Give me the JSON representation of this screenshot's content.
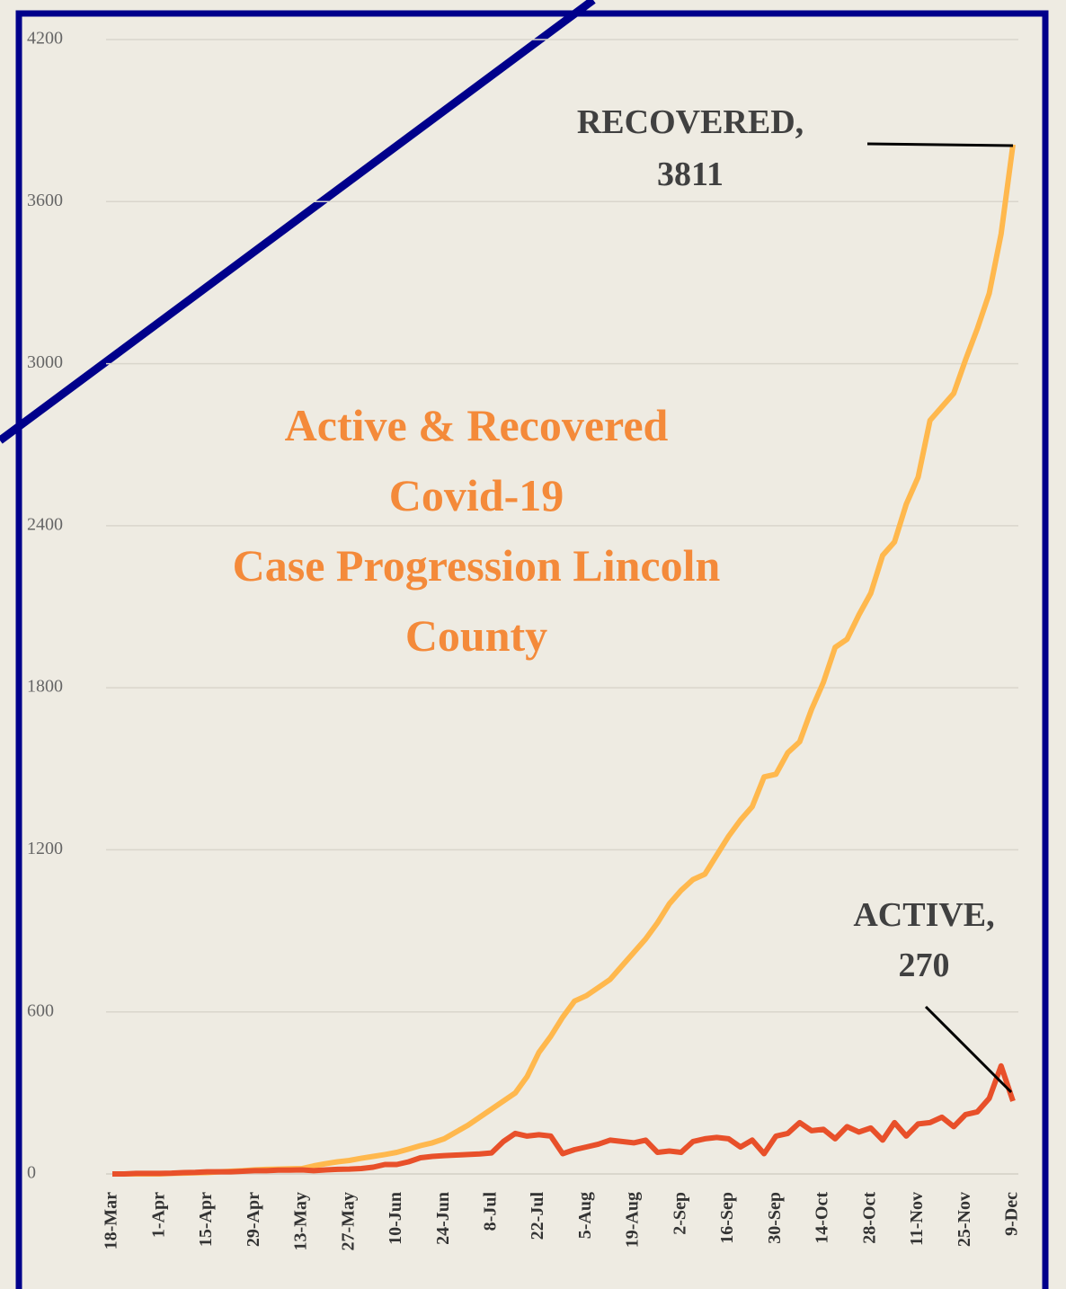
{
  "chart_data": {
    "type": "line",
    "title": [
      "Active & Recovered",
      "Covid-19",
      "Case Progression Lincoln",
      "County"
    ],
    "categories": [
      "18-Mar",
      null,
      null,
      null,
      "1-Apr",
      null,
      null,
      null,
      "15-Apr",
      null,
      null,
      null,
      "29-Apr",
      null,
      null,
      null,
      "13-May",
      null,
      null,
      null,
      "27-May",
      null,
      null,
      null,
      "10-Jun",
      null,
      null,
      null,
      "24-Jun",
      null,
      null,
      null,
      "8-Jul",
      null,
      null,
      null,
      "22-Jul",
      null,
      null,
      null,
      "5-Aug",
      null,
      null,
      null,
      "19-Aug",
      null,
      null,
      null,
      "2-Sep",
      null,
      null,
      null,
      "16-Sep",
      null,
      null,
      null,
      "30-Sep",
      null,
      null,
      null,
      "14-Oct",
      null,
      null,
      null,
      "28-Oct",
      null,
      null,
      null,
      "11-Nov",
      null,
      null,
      null,
      "25-Nov",
      null,
      null,
      null,
      "9-Dec"
    ],
    "series": [
      {
        "name": "RECOVERED,",
        "color": "#ffb84d",
        "values": [
          0,
          0,
          0,
          0,
          0,
          2,
          3,
          4,
          5,
          8,
          10,
          12,
          15,
          17,
          18,
          19,
          20,
          30,
          38,
          45,
          50,
          58,
          65,
          72,
          80,
          92,
          105,
          115,
          130,
          155,
          180,
          210,
          240,
          270,
          300,
          360,
          450,
          510,
          580,
          640,
          660,
          690,
          720,
          770,
          820,
          870,
          930,
          1000,
          1050,
          1090,
          1110,
          1180,
          1250,
          1310,
          1360,
          1470,
          1480,
          1560,
          1600,
          1720,
          1820,
          1950,
          1980,
          2070,
          2150,
          2290,
          2340,
          2480,
          2580,
          2790,
          2840,
          2890,
          3015,
          3130,
          3260,
          3480,
          3811
        ]
      },
      {
        "name": "ACTIVE,",
        "color": "#e8502a",
        "values": [
          0,
          0,
          2,
          2,
          2,
          3,
          5,
          6,
          8,
          8,
          8,
          10,
          12,
          12,
          14,
          14,
          15,
          12,
          15,
          17,
          18,
          20,
          25,
          35,
          35,
          45,
          60,
          65,
          68,
          70,
          72,
          74,
          78,
          120,
          150,
          140,
          145,
          140,
          75,
          90,
          100,
          110,
          125,
          120,
          115,
          125,
          80,
          85,
          80,
          120,
          130,
          135,
          130,
          100,
          125,
          75,
          140,
          150,
          190,
          160,
          165,
          130,
          175,
          155,
          170,
          125,
          190,
          140,
          185,
          190,
          210,
          175,
          220,
          230,
          280,
          400,
          270
        ]
      }
    ],
    "ylim": [
      0,
      4200
    ],
    "yticks": [
      0,
      600,
      1200,
      1800,
      2400,
      3000,
      3600,
      4200
    ],
    "grid": true
  }
}
